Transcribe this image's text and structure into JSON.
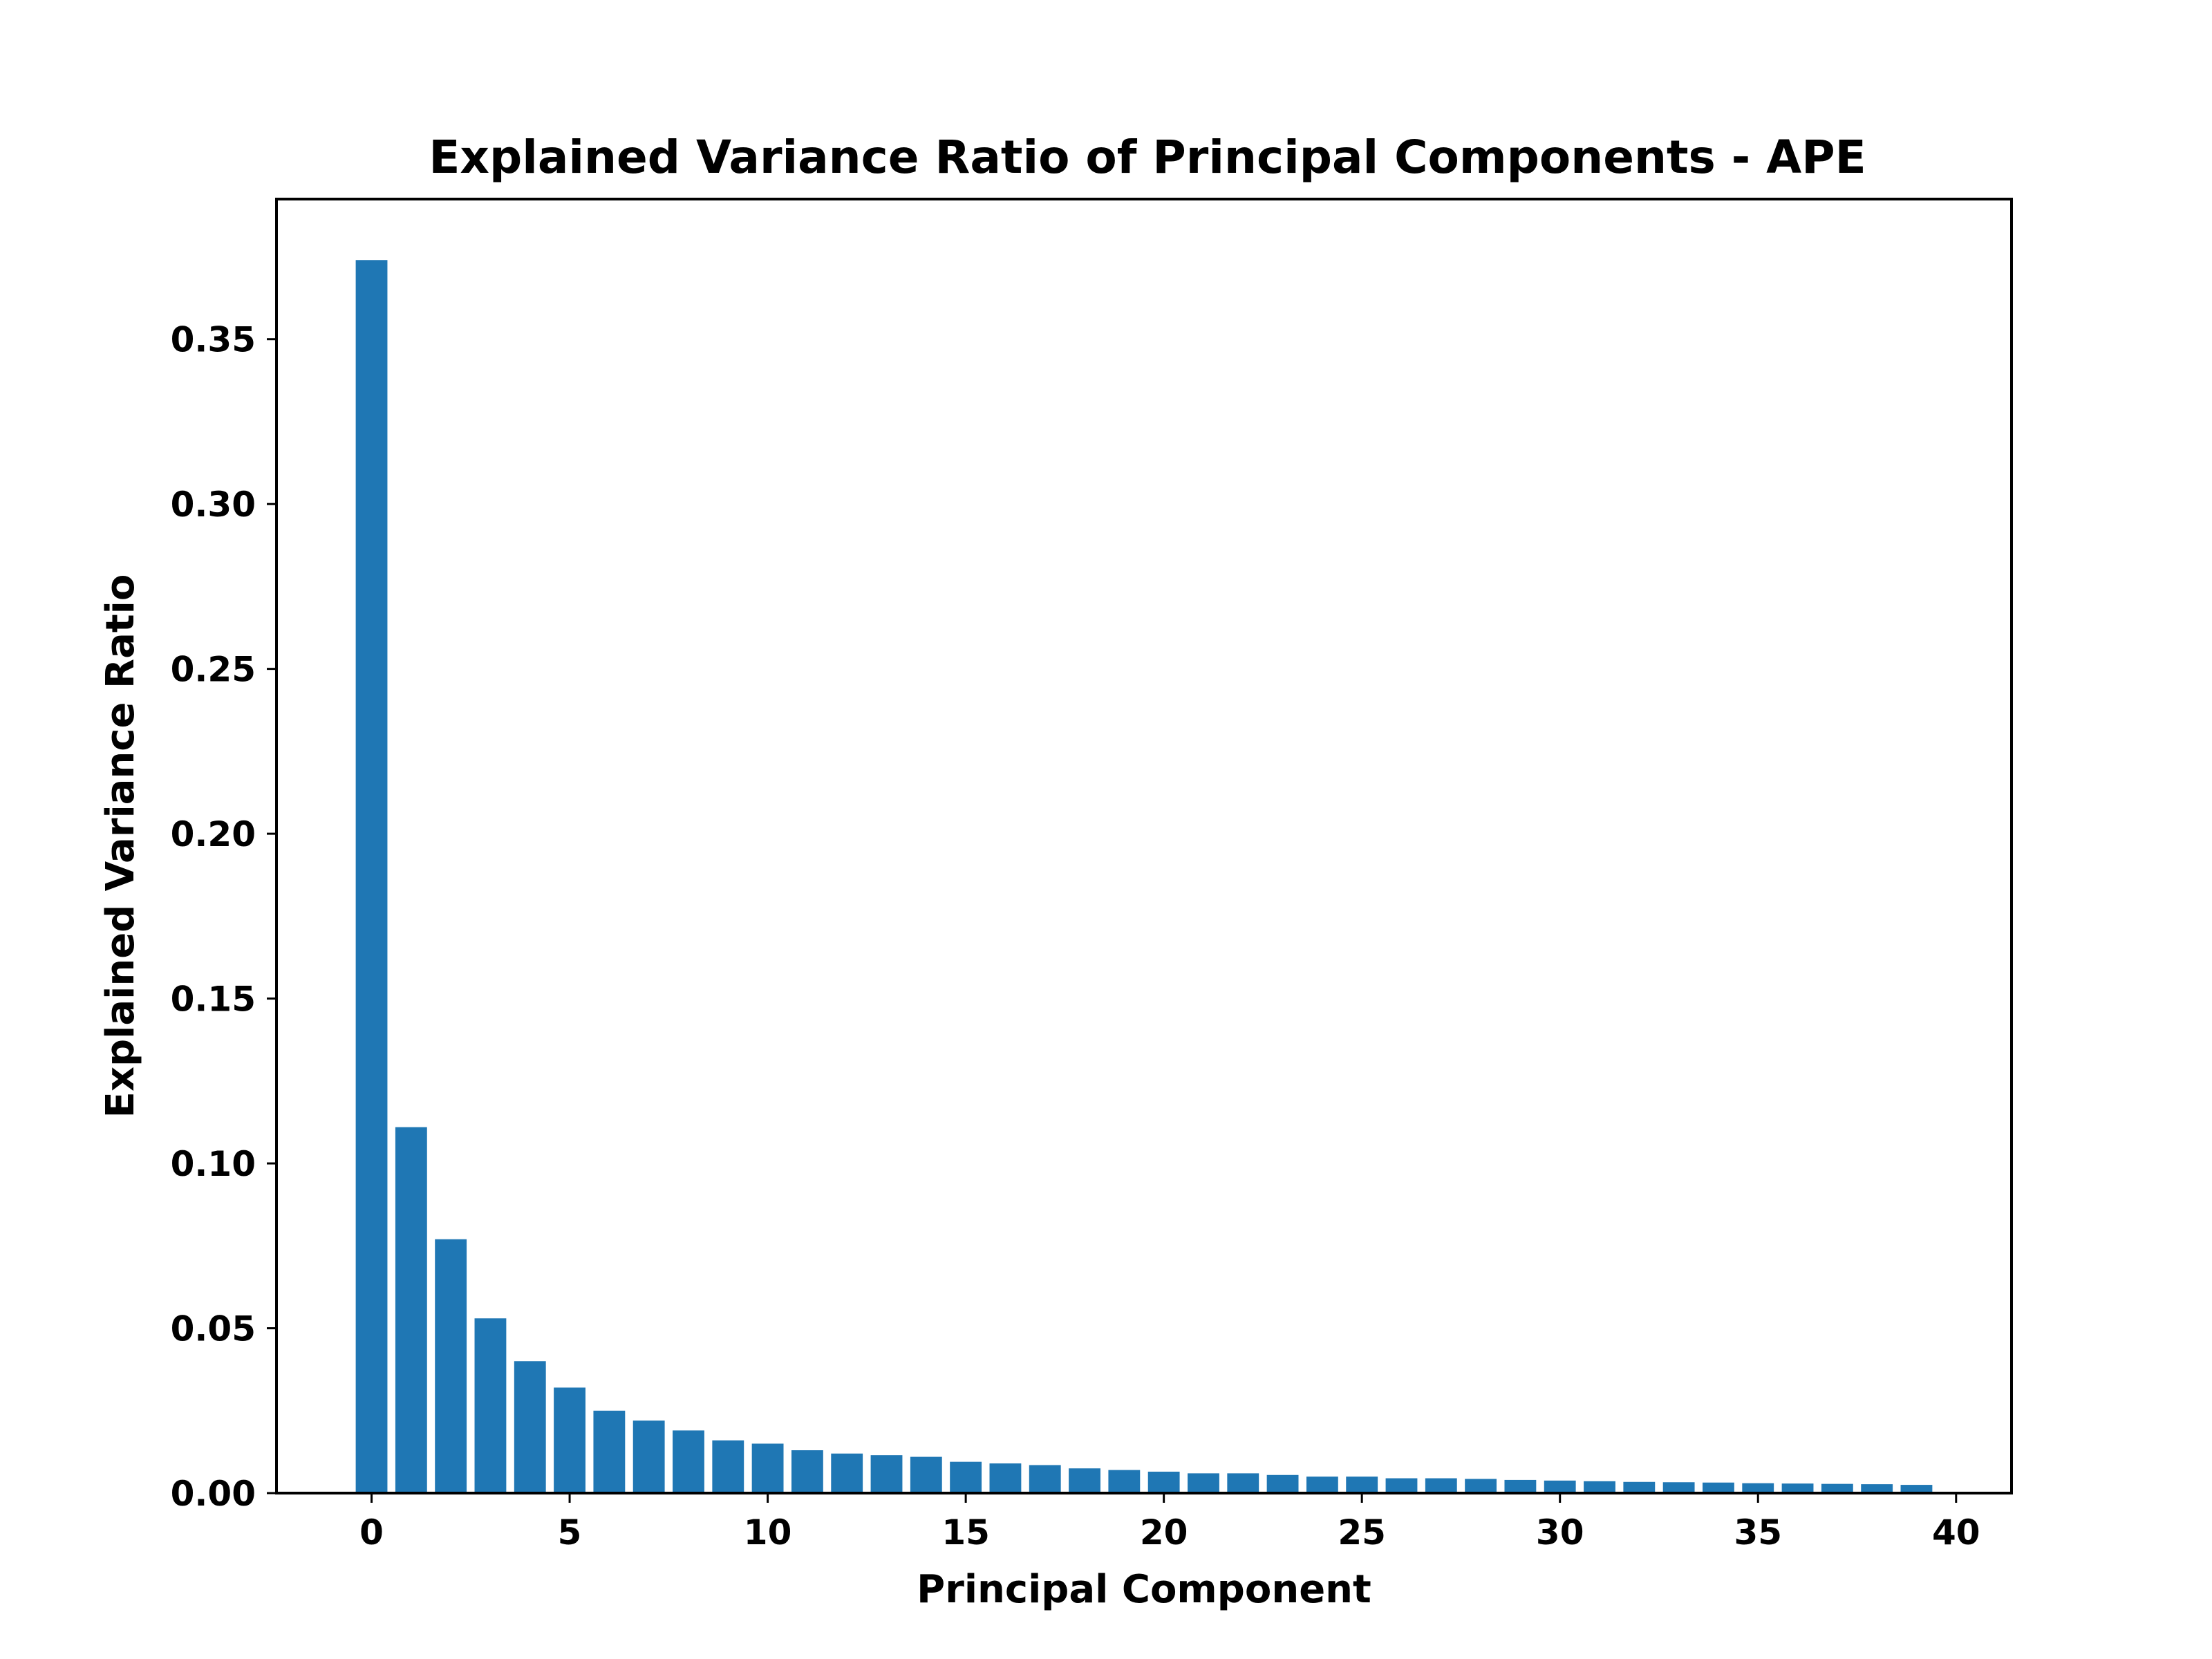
{
  "chart_data": {
    "type": "bar",
    "title": "Explained Variance Ratio of Principal Components - APE",
    "xlabel": "Principal Component",
    "ylabel": "Explained Variance Ratio",
    "x": [
      0,
      1,
      2,
      3,
      4,
      5,
      6,
      7,
      8,
      9,
      10,
      11,
      12,
      13,
      14,
      15,
      16,
      17,
      18,
      19,
      20,
      21,
      22,
      23,
      24,
      25,
      26,
      27,
      28,
      29,
      30,
      31,
      32,
      33,
      34,
      35,
      36,
      37,
      38,
      39
    ],
    "values": [
      0.374,
      0.111,
      0.077,
      0.053,
      0.04,
      0.032,
      0.025,
      0.022,
      0.019,
      0.016,
      0.015,
      0.013,
      0.012,
      0.0115,
      0.011,
      0.0095,
      0.009,
      0.0085,
      0.0075,
      0.007,
      0.0065,
      0.006,
      0.006,
      0.0055,
      0.005,
      0.005,
      0.0045,
      0.0045,
      0.0043,
      0.004,
      0.0038,
      0.0036,
      0.0034,
      0.0033,
      0.0032,
      0.003,
      0.0029,
      0.0028,
      0.0027,
      0.0025
    ],
    "xlim": [
      -2.4,
      41.4
    ],
    "ylim": [
      0,
      0.3925
    ],
    "xticks": [
      0,
      5,
      10,
      15,
      20,
      25,
      30,
      35,
      40
    ],
    "xtick_labels": [
      "0",
      "5",
      "10",
      "15",
      "20",
      "25",
      "30",
      "35",
      "40"
    ],
    "yticks": [
      0.0,
      0.05,
      0.1,
      0.15,
      0.2,
      0.25,
      0.3,
      0.35
    ],
    "ytick_labels": [
      "0.00",
      "0.05",
      "0.10",
      "0.15",
      "0.20",
      "0.25",
      "0.30",
      "0.35"
    ],
    "bar_color": "#1f77b4",
    "grid": false,
    "legend": false
  }
}
